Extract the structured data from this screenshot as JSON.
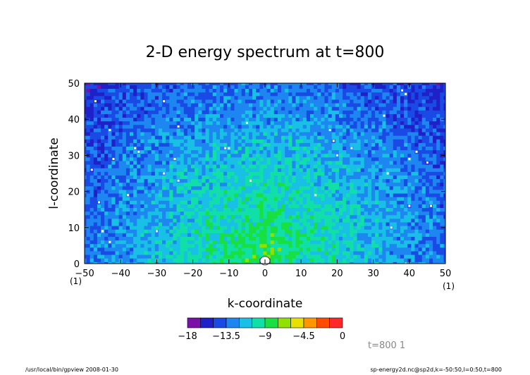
{
  "chart_data": {
    "type": "heatmap",
    "title": "2-D energy spectrum at t=800",
    "xlabel": "k-coordinate",
    "ylabel": "l-coordinate",
    "xlim": [
      -50,
      50
    ],
    "ylim": [
      0,
      50
    ],
    "x_ticks": [
      -50,
      -40,
      -30,
      -20,
      -10,
      0,
      10,
      20,
      30,
      40,
      50
    ],
    "y_ticks": [
      0,
      10,
      20,
      30,
      40,
      50
    ],
    "x_tick_labels": [
      "−50",
      "−40",
      "−30",
      "−20",
      "−10",
      "0",
      "10",
      "20",
      "30",
      "40",
      "50"
    ],
    "y_tick_labels": [
      "0",
      "10",
      "20",
      "30",
      "40",
      "50"
    ],
    "x_corner_left": "(1)",
    "x_corner_right": "(1)",
    "colorbar": {
      "levels": [
        -18,
        -16.5,
        -15,
        -13.5,
        -12,
        -10.5,
        -9,
        -7.5,
        -6,
        -4.5,
        -3,
        -1.5,
        0
      ],
      "tick_values": [
        -18,
        -13.5,
        -9,
        -4.5,
        0
      ],
      "tick_labels": [
        "−18",
        "−13.5",
        "−9",
        "−4.5",
        "0"
      ],
      "colors": [
        "#7a10a8",
        "#2020c8",
        "#1a4ae6",
        "#1e86f0",
        "#18c0e6",
        "#10e0a8",
        "#18e040",
        "#90e000",
        "#e8e000",
        "#ff9600",
        "#ff4a00",
        "#ff2828"
      ]
    },
    "field_description": "log energy spectrum; peak near (k=0,l=5) about -8, decreasing with radius to about -15 at the corners",
    "grid": false
  },
  "annotation_right": "t=800 1",
  "footer_left": "/usr/local/bin/gpview  2008-01-30",
  "footer_right": "sp-energy2d.nc@sp2d,k=-50:50,l=0:50,t=800"
}
